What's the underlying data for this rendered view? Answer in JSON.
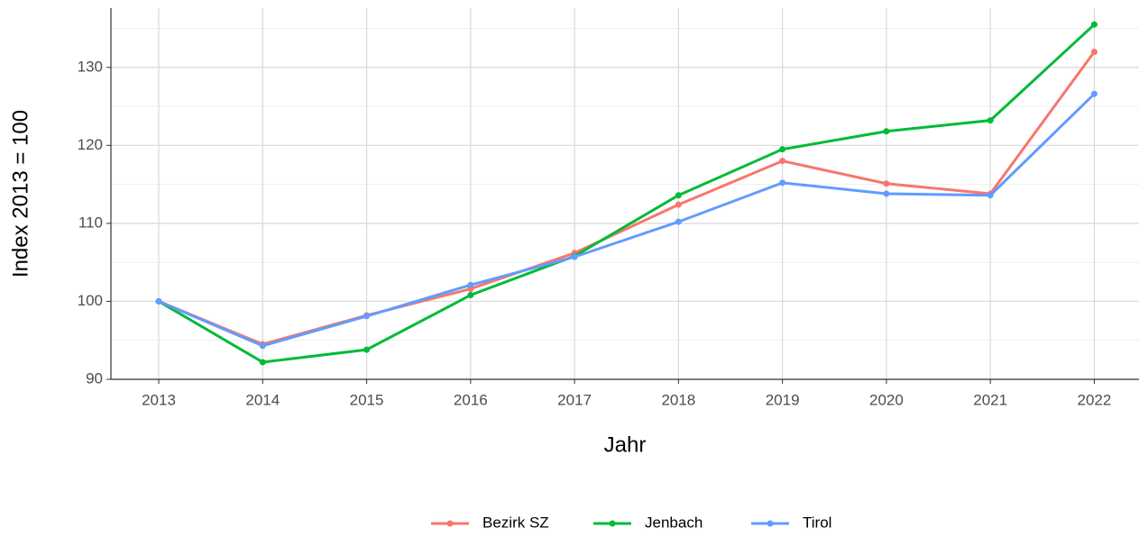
{
  "chart_data": {
    "type": "line",
    "x": [
      2013,
      2014,
      2015,
      2016,
      2017,
      2018,
      2019,
      2020,
      2021,
      2022
    ],
    "series": [
      {
        "name": "Bezirk SZ",
        "color": "#F8766D",
        "values": [
          100,
          94.5,
          98.2,
          101.6,
          106.2,
          112.4,
          118.0,
          115.1,
          113.8,
          132.0
        ]
      },
      {
        "name": "Jenbach",
        "color": "#00BA38",
        "values": [
          100,
          92.2,
          93.8,
          100.8,
          105.8,
          113.6,
          119.5,
          121.8,
          123.2,
          135.5
        ]
      },
      {
        "name": "Tirol",
        "color": "#619CFF",
        "values": [
          100,
          94.3,
          98.1,
          102.1,
          105.7,
          110.2,
          115.2,
          113.8,
          113.6,
          126.6
        ]
      }
    ],
    "xlabel": "Jahr",
    "ylabel": "Index  2013  = 100",
    "xlim": [
      2012.54,
      2022.43
    ],
    "xticks": [
      2013,
      2014,
      2015,
      2016,
      2017,
      2018,
      2019,
      2020,
      2021,
      2022
    ],
    "ylim": [
      90,
      137.6
    ],
    "yticks": [
      90,
      100,
      110,
      120,
      130
    ],
    "grid": true,
    "legend": "bottom"
  }
}
